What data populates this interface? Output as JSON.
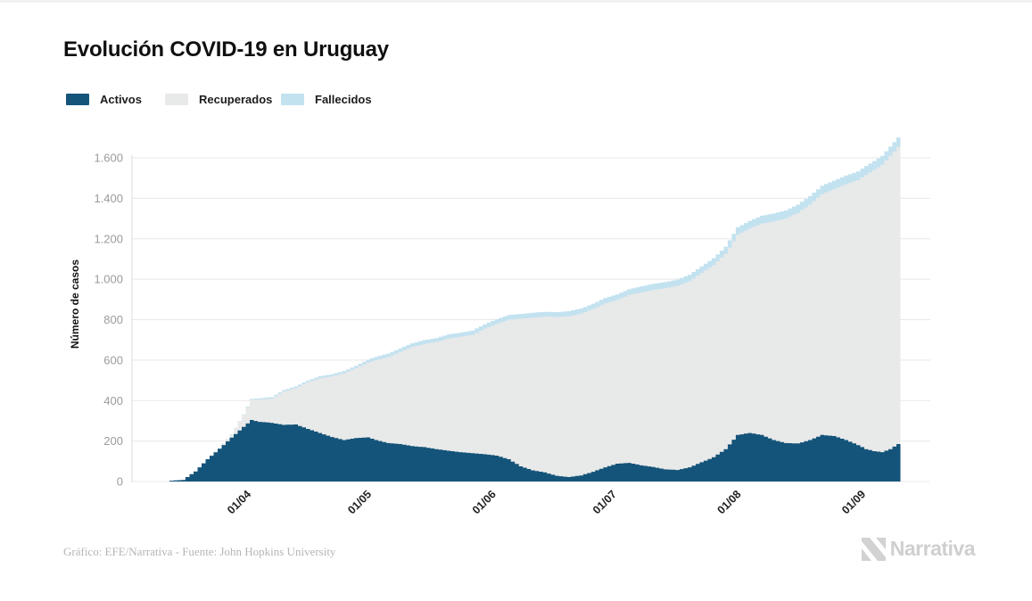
{
  "header": {
    "title": "Evolución COVID-19 en Uruguay"
  },
  "legend": {
    "items": [
      {
        "label": "Activos",
        "color": "#14547a"
      },
      {
        "label": "Recuperados",
        "color": "#e8e9e9"
      },
      {
        "label": "Fallecidos",
        "color": "#c3e2f0"
      }
    ]
  },
  "footer": {
    "credit": "Gráfico: EFE/Narrativa - Fuente: John Hopkins University",
    "logo_text": "Narrativa"
  },
  "colors": {
    "gridline": "#e8e8e8",
    "axis_line": "#dcdcdc",
    "ytick_text": "#9b9b9b",
    "xtick_text": "#1f1f1f",
    "logo_gray": "#d2d2d2"
  },
  "chart_data": {
    "type": "area",
    "variant": "stacked-step",
    "title": "Evolución COVID-19 en Uruguay",
    "xlabel": "",
    "ylabel": "Número de casos",
    "ylim": [
      0,
      1700
    ],
    "grid": "horizontal",
    "legend_position": "top-left",
    "ytick_labels": [
      "0",
      "200",
      "400",
      "600",
      "800",
      "1.000",
      "1.200",
      "1.400",
      "1.600"
    ],
    "ytick_values": [
      0,
      200,
      400,
      600,
      800,
      1000,
      1200,
      1400,
      1600
    ],
    "xticks": [
      {
        "label": "01/04",
        "date": "2020-04-01"
      },
      {
        "label": "01/05",
        "date": "2020-05-01"
      },
      {
        "label": "01/06",
        "date": "2020-06-01"
      },
      {
        "label": "01/07",
        "date": "2020-07-01"
      },
      {
        "label": "01/08",
        "date": "2020-08-01"
      },
      {
        "label": "01/09",
        "date": "2020-09-01"
      }
    ],
    "x": [
      "2020-03-12",
      "2020-03-15",
      "2020-03-18",
      "2020-03-21",
      "2020-03-24",
      "2020-03-27",
      "2020-03-30",
      "2020-04-01",
      "2020-04-03",
      "2020-04-06",
      "2020-04-09",
      "2020-04-12",
      "2020-04-15",
      "2020-04-18",
      "2020-04-21",
      "2020-04-24",
      "2020-04-27",
      "2020-04-30",
      "2020-05-02",
      "2020-05-05",
      "2020-05-08",
      "2020-05-11",
      "2020-05-14",
      "2020-05-17",
      "2020-05-20",
      "2020-05-23",
      "2020-05-26",
      "2020-05-29",
      "2020-06-01",
      "2020-06-04",
      "2020-06-07",
      "2020-06-10",
      "2020-06-13",
      "2020-06-16",
      "2020-06-19",
      "2020-06-22",
      "2020-06-25",
      "2020-06-28",
      "2020-07-01",
      "2020-07-04",
      "2020-07-07",
      "2020-07-10",
      "2020-07-13",
      "2020-07-16",
      "2020-07-19",
      "2020-07-22",
      "2020-07-25",
      "2020-07-28",
      "2020-07-31",
      "2020-08-03",
      "2020-08-06",
      "2020-08-09",
      "2020-08-12",
      "2020-08-15",
      "2020-08-18",
      "2020-08-21",
      "2020-08-24",
      "2020-08-27",
      "2020-08-30",
      "2020-09-01",
      "2020-09-03",
      "2020-09-05",
      "2020-09-07",
      "2020-09-09"
    ],
    "series": [
      {
        "name": "Activos",
        "color": "#14547a",
        "values": [
          4,
          8,
          50,
          110,
          162,
          217,
          270,
          304,
          295,
          290,
          280,
          282,
          260,
          240,
          220,
          205,
          215,
          218,
          205,
          190,
          185,
          175,
          170,
          160,
          152,
          145,
          140,
          135,
          128,
          110,
          75,
          55,
          45,
          28,
          22,
          30,
          48,
          70,
          88,
          92,
          80,
          72,
          60,
          57,
          70,
          95,
          120,
          160,
          230,
          240,
          230,
          205,
          190,
          188,
          205,
          230,
          225,
          205,
          180,
          160,
          150,
          145,
          160,
          185
        ]
      },
      {
        "name": "Recuperados",
        "color": "#e8e9e9",
        "values": [
          0,
          0,
          0,
          0,
          3,
          15,
          60,
          100,
          110,
          120,
          165,
          180,
          230,
          270,
          300,
          330,
          345,
          370,
          395,
          425,
          455,
          490,
          510,
          530,
          555,
          570,
          585,
          620,
          651,
          690,
          730,
          755,
          770,
          785,
          795,
          800,
          805,
          810,
          809,
          830,
          855,
          875,
          895,
          910,
          920,
          935,
          950,
          965,
          990,
          1010,
          1045,
          1080,
          1110,
          1140,
          1165,
          1190,
          1220,
          1265,
          1310,
          1356,
          1390,
          1420,
          1450,
          1469
        ]
      },
      {
        "name": "Fallecidos",
        "color": "#c3e2f0",
        "values": [
          0,
          0,
          0,
          0,
          1,
          1,
          2,
          5,
          6,
          7,
          7,
          8,
          9,
          10,
          10,
          11,
          12,
          14,
          16,
          17,
          18,
          18,
          19,
          19,
          20,
          21,
          21,
          22,
          23,
          23,
          23,
          24,
          24,
          24,
          25,
          25,
          26,
          27,
          28,
          29,
          29,
          30,
          31,
          31,
          32,
          33,
          34,
          35,
          37,
          38,
          39,
          40,
          40,
          41,
          41,
          42,
          42,
          43,
          43,
          44,
          44,
          45,
          45,
          46
        ]
      }
    ]
  }
}
